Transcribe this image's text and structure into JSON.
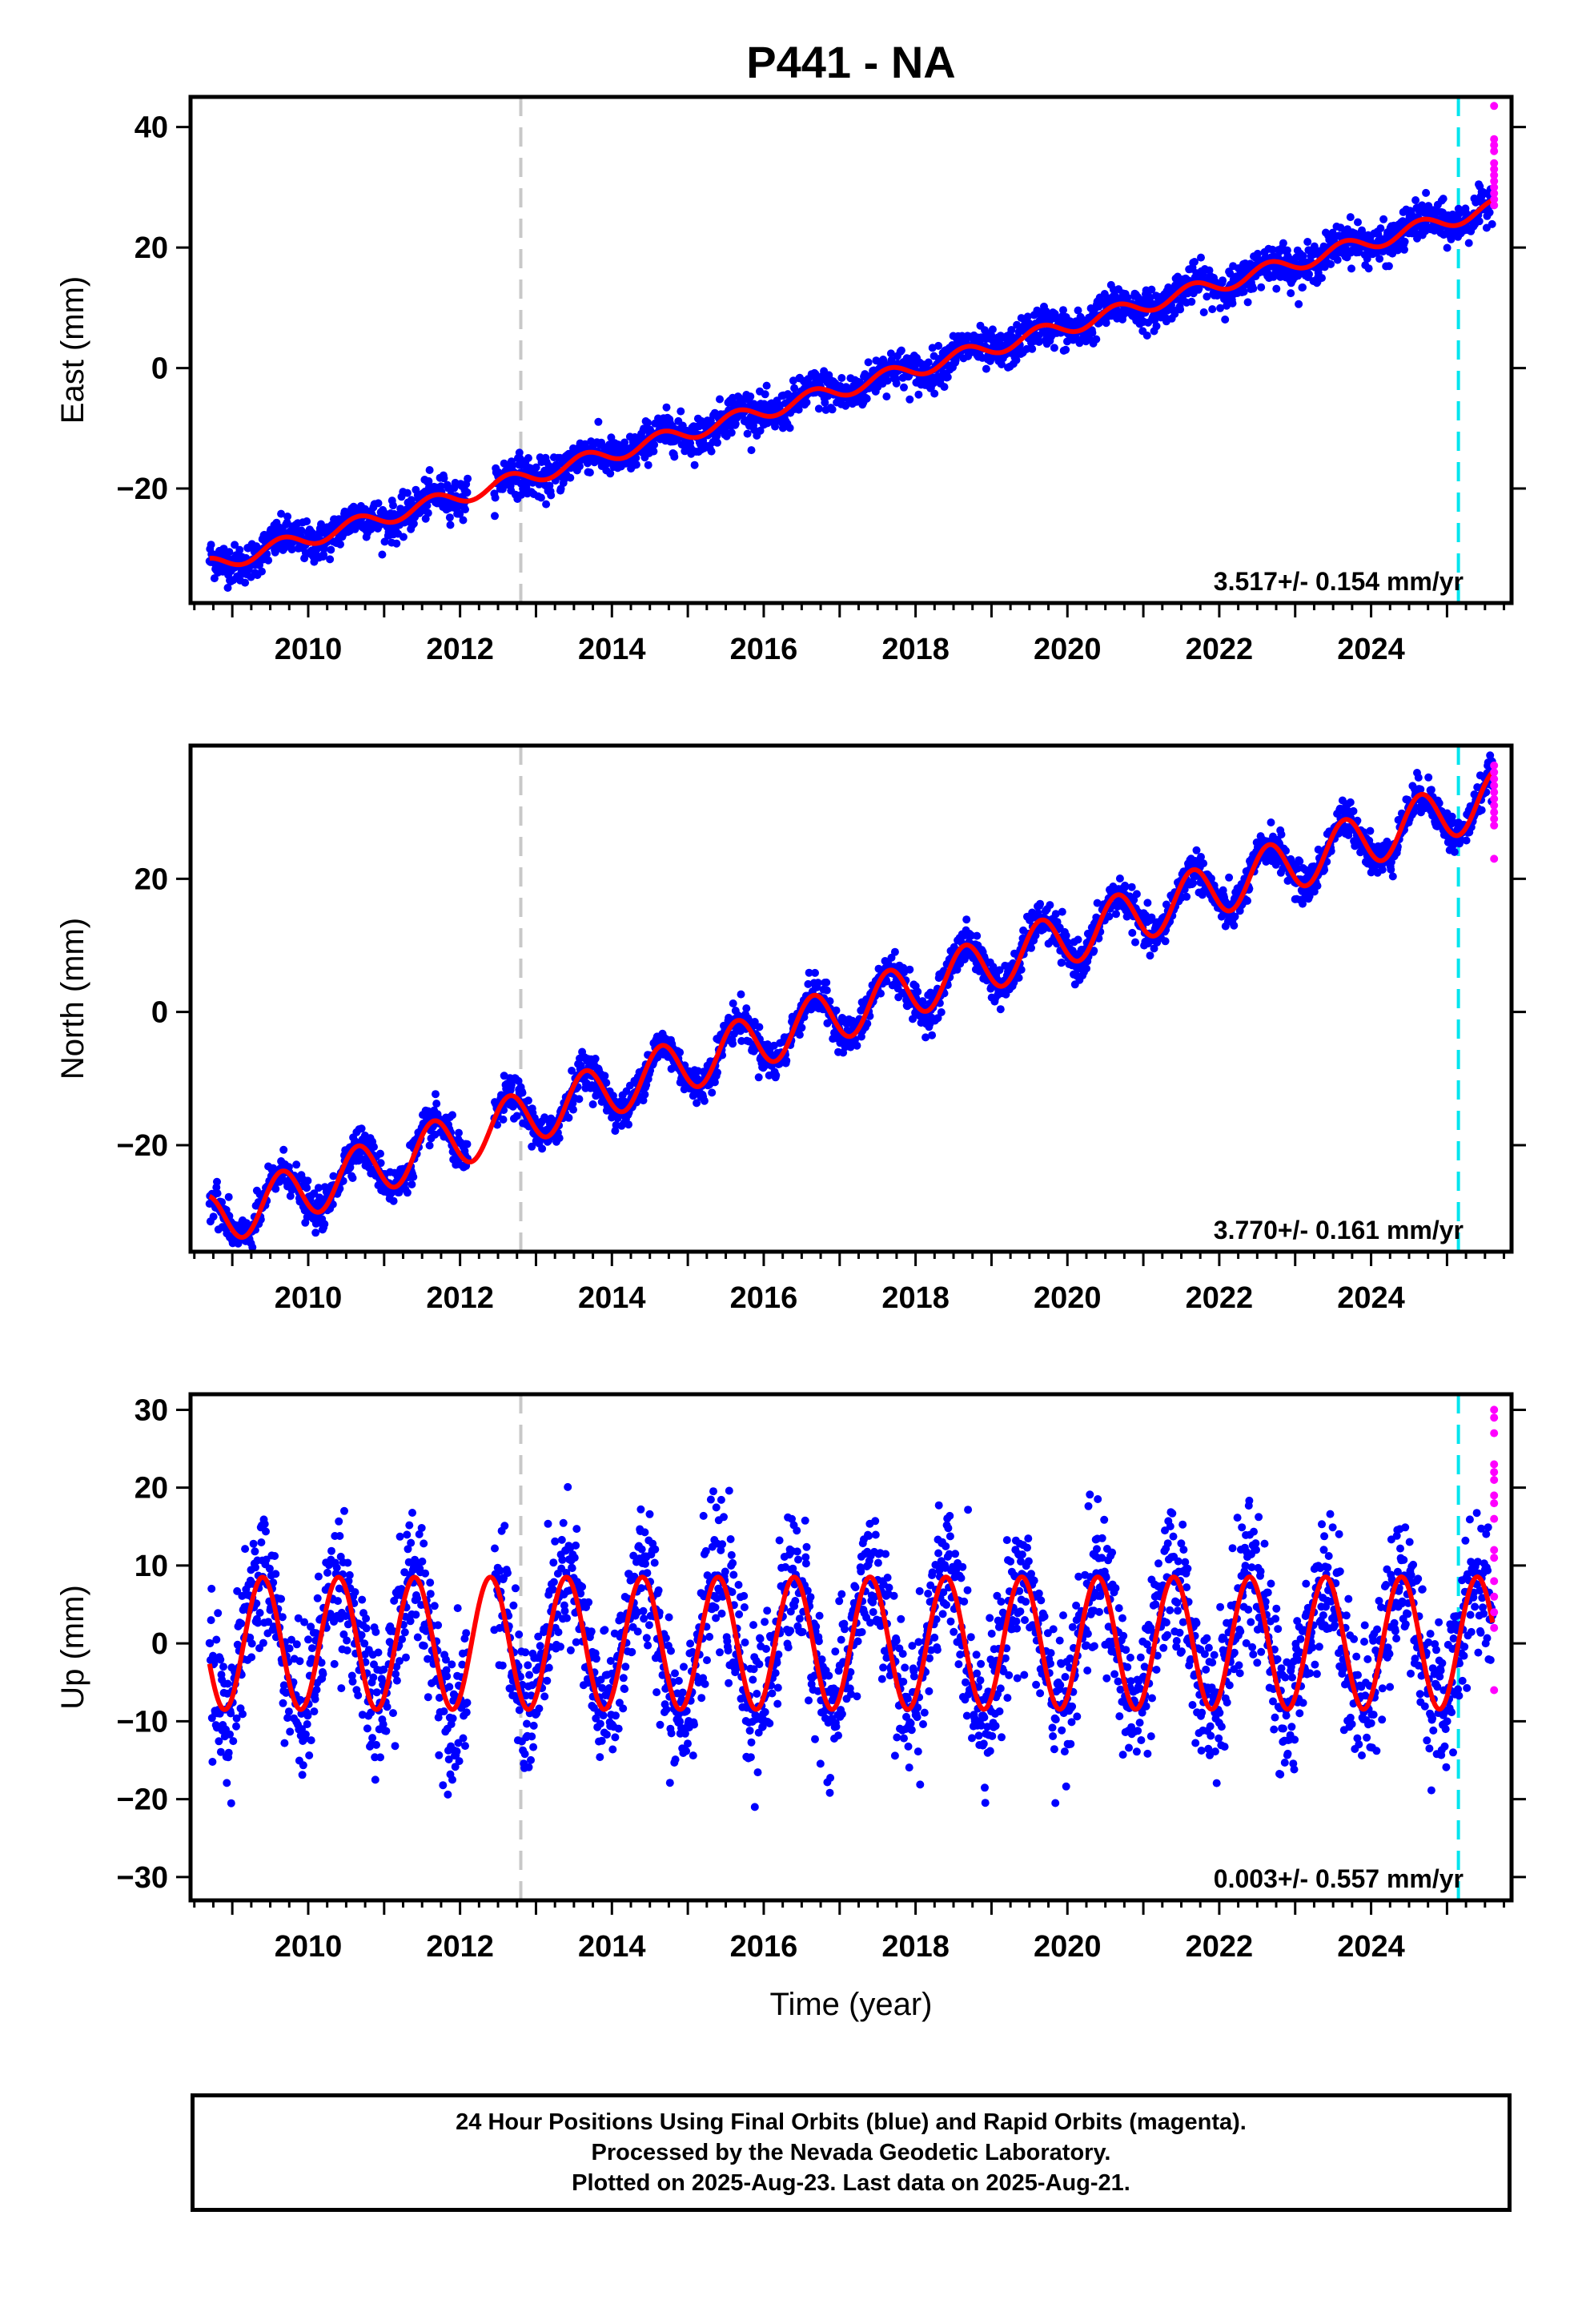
{
  "chart_data": [
    {
      "type": "scatter",
      "title": "P441 - NA",
      "ylabel": "East (mm)",
      "xlabel": "",
      "xlim": [
        2008.45,
        2025.85
      ],
      "ylim": [
        -39,
        45
      ],
      "yticks": [
        -20,
        0,
        20,
        40
      ],
      "xticks": [
        2010,
        2012,
        2014,
        2016,
        2018,
        2020,
        2022,
        2024
      ],
      "rate_label": "3.517+/- 0.154 mm/yr",
      "trend": {
        "t0": 2008.7,
        "y0": -32.8,
        "slope": 3.517,
        "seasonal_amplitude": 1.3
      },
      "scatter_noise_mm": 1.6,
      "rapid_orbit_values": [
        43.5,
        38,
        37,
        36,
        34,
        33,
        32,
        31,
        30,
        29,
        28,
        27
      ],
      "reference_lines": [
        {
          "x": 2012.8,
          "style": "equipment-change",
          "color": "#c8c8c8"
        },
        {
          "x": 2025.15,
          "style": "earthquake",
          "color": "#00e5ee"
        }
      ],
      "colors": {
        "final": "#0000ff",
        "rapid": "#ff00ff",
        "model": "#ff0000"
      }
    },
    {
      "type": "scatter",
      "title": "",
      "ylabel": "North (mm)",
      "xlabel": "",
      "xlim": [
        2008.45,
        2025.85
      ],
      "ylim": [
        -36,
        40
      ],
      "yticks": [
        -20,
        0,
        20
      ],
      "xticks": [
        2010,
        2012,
        2014,
        2016,
        2018,
        2020,
        2022,
        2024
      ],
      "rate_label": "3.770+/- 0.161 mm/yr",
      "trend": {
        "t0": 2008.7,
        "y0": -31.5,
        "slope": 3.77,
        "seasonal_amplitude": 4.0
      },
      "scatter_noise_mm": 1.4,
      "rapid_orbit_values": [
        37,
        36,
        35,
        34,
        33,
        32,
        31,
        30,
        29,
        28,
        23
      ],
      "reference_lines": [
        {
          "x": 2012.8,
          "style": "equipment-change",
          "color": "#c8c8c8"
        },
        {
          "x": 2025.15,
          "style": "earthquake",
          "color": "#00e5ee"
        }
      ],
      "colors": {
        "final": "#0000ff",
        "rapid": "#ff00ff",
        "model": "#ff0000"
      }
    },
    {
      "type": "scatter",
      "title": "",
      "ylabel": "Up (mm)",
      "xlabel": "Time (year)",
      "xlim": [
        2008.45,
        2025.85
      ],
      "ylim": [
        -33,
        32
      ],
      "yticks": [
        -30,
        -20,
        -10,
        0,
        10,
        20,
        30
      ],
      "xticks": [
        2010,
        2012,
        2014,
        2016,
        2018,
        2020,
        2022,
        2024
      ],
      "rate_label": "0.003+/- 0.557 mm/yr",
      "trend": {
        "t0": 2008.7,
        "y0": 0,
        "slope": 0.003,
        "seasonal_amplitude": 8.5
      },
      "scatter_noise_mm": 4.5,
      "rapid_orbit_values": [
        30,
        29,
        27,
        23,
        22,
        21,
        19,
        18,
        16,
        12,
        11,
        8,
        6,
        4,
        2,
        -6
      ],
      "reference_lines": [
        {
          "x": 2012.8,
          "style": "equipment-change",
          "color": "#c8c8c8"
        },
        {
          "x": 2025.15,
          "style": "earthquake",
          "color": "#00e5ee"
        }
      ],
      "colors": {
        "final": "#0000ff",
        "rapid": "#ff00ff",
        "model": "#ff0000"
      }
    }
  ],
  "footer": {
    "line1": "24 Hour Positions Using Final Orbits (blue) and Rapid Orbits (magenta).",
    "line2": "Processed by the Nevada Geodetic Laboratory.",
    "line3": "Plotted on 2025-Aug-23. Last data on 2025-Aug-21."
  }
}
